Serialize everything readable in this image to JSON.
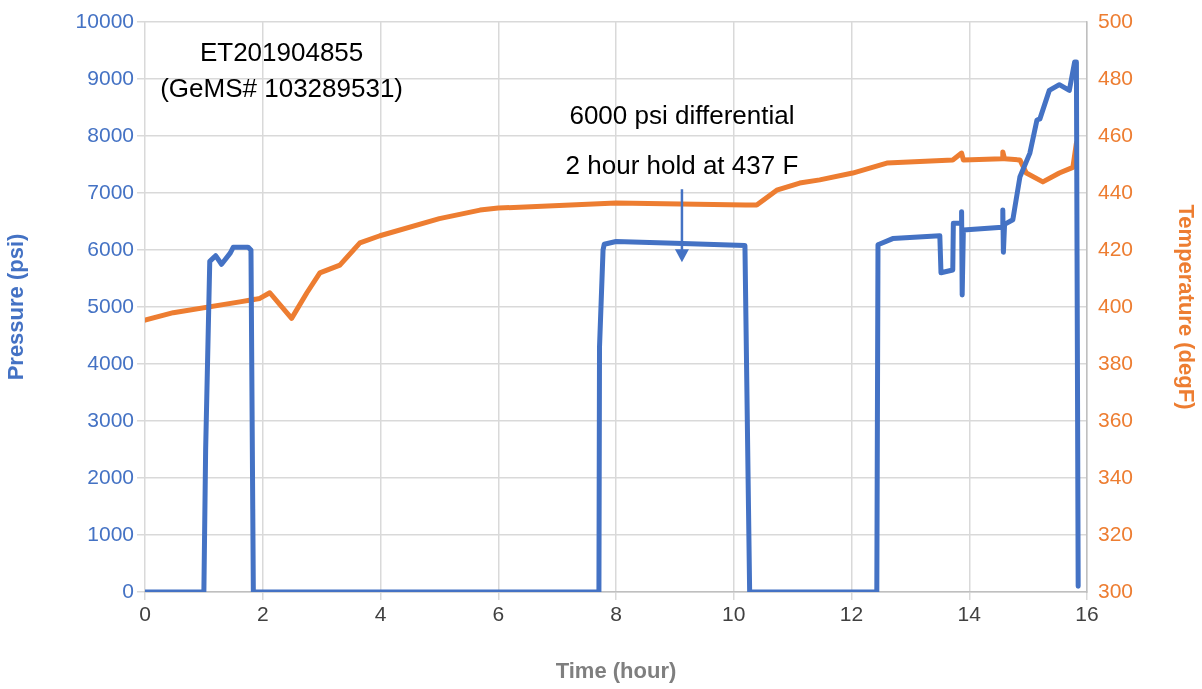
{
  "chart_data": {
    "type": "line",
    "xlabel": "Time (hour)",
    "ylabel": "Pressure (psi)",
    "y2label": "Temperature (degF)",
    "xlim": [
      0,
      16
    ],
    "xticks": [
      0,
      2,
      4,
      6,
      8,
      10,
      12,
      14,
      16
    ],
    "ylim": [
      0,
      10000
    ],
    "yticks": [
      0,
      1000,
      2000,
      3000,
      4000,
      5000,
      6000,
      7000,
      8000,
      9000,
      10000
    ],
    "y2lim": [
      300,
      500
    ],
    "y2ticks": [
      300,
      320,
      340,
      360,
      380,
      400,
      420,
      440,
      460,
      480,
      500
    ],
    "grid": true,
    "legend": false,
    "marker": "none",
    "line_style": "solid",
    "annotations": [
      "ET201904855\n(GeMS# 103289531)",
      "6000 psi differential\n2 hour hold at 437 F"
    ],
    "series": [
      {
        "color": "#4472c4",
        "x": [
          0,
          1.0,
          1.03,
          1.1,
          1.2,
          1.3,
          1.45,
          1.5,
          1.75,
          1.8,
          1.84,
          7.71,
          7.72,
          7.78,
          7.8,
          8.0,
          9.0,
          10.19,
          10.27,
          12.43,
          12.45,
          12.47,
          12.7,
          13.5,
          13.52,
          13.72,
          13.73,
          13.86,
          13.87,
          13.88,
          13.9,
          14.56,
          14.57,
          14.58,
          14.6,
          14.74,
          14.86,
          15.03,
          15.15,
          15.2,
          15.36,
          15.53,
          15.7,
          15.79,
          15.82,
          15.85
        ],
        "values": [
          0,
          0,
          2500,
          5800,
          5900,
          5750,
          5950,
          6050,
          6050,
          6000,
          0,
          0,
          4300,
          6000,
          6100,
          6150,
          6120,
          6080,
          0,
          0,
          6090,
          6100,
          6200,
          6250,
          5600,
          5650,
          6470,
          6470,
          6670,
          5210,
          6350,
          6400,
          6700,
          5960,
          6450,
          6530,
          7280,
          7700,
          8280,
          8300,
          8800,
          8900,
          8800,
          9300,
          9300,
          100
        ]
      },
      {
        "color": "#ed7d31",
        "axis": "y2",
        "x": [
          0,
          0.48,
          1.61,
          1.95,
          2.12,
          2.49,
          2.75,
          2.97,
          3.31,
          3.65,
          3.99,
          5.0,
          5.69,
          6.0,
          8.0,
          10.2,
          10.39,
          10.73,
          11.12,
          11.46,
          12.02,
          12.6,
          13.72,
          13.87,
          13.9,
          14.56,
          14.57,
          14.6,
          14.86,
          14.97,
          15.25,
          15.53,
          15.76,
          15.82
        ],
        "values": [
          395.4,
          398,
          401.8,
          403,
          405,
          396,
          405,
          412,
          414.7,
          422.5,
          425,
          431,
          434,
          434.7,
          436.5,
          435.8,
          435.8,
          441,
          443.5,
          444.6,
          447,
          450.5,
          451.6,
          454,
          451.6,
          452,
          454.4,
          452,
          451.6,
          447,
          443.9,
          447,
          449,
          457.5
        ]
      }
    ]
  }
}
